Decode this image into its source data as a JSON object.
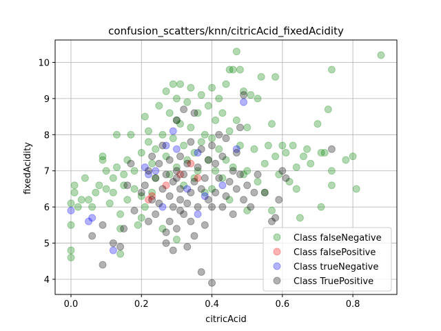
{
  "chart_data": {
    "type": "scatter",
    "title": "confusion_scatters/knn/citricAcid_fixedAcidity",
    "xlabel": "citricAcid",
    "ylabel": "fixedAcidity",
    "xlim": [
      -0.045,
      0.925
    ],
    "ylim": [
      3.58,
      10.62
    ],
    "xticks": [
      0.0,
      0.2,
      0.4,
      0.6,
      0.8
    ],
    "yticks": [
      4,
      5,
      6,
      7,
      8,
      9,
      10
    ],
    "xtick_labels": [
      "0.0",
      "0.2",
      "0.4",
      "0.6",
      "0.8"
    ],
    "ytick_labels": [
      "4",
      "5",
      "6",
      "7",
      "8",
      "9",
      "10"
    ],
    "grid": true,
    "legend_position": "bottom-right",
    "series": [
      {
        "name": "Class falseNegative",
        "color": "#008000",
        "points": [
          [
            0.0,
            4.6
          ],
          [
            0.0,
            4.8
          ],
          [
            0.0,
            5.5
          ],
          [
            0.0,
            6.1
          ],
          [
            0.01,
            6.4
          ],
          [
            0.01,
            6.6
          ],
          [
            0.02,
            6.0
          ],
          [
            0.03,
            6.2
          ],
          [
            0.04,
            6.8
          ],
          [
            0.05,
            6.2
          ],
          [
            0.06,
            6.0
          ],
          [
            0.07,
            6.4
          ],
          [
            0.08,
            6.6
          ],
          [
            0.09,
            7.3
          ],
          [
            0.09,
            7.4
          ],
          [
            0.1,
            6.5
          ],
          [
            0.1,
            7.0
          ],
          [
            0.11,
            6.1
          ],
          [
            0.12,
            6.4
          ],
          [
            0.12,
            6.8
          ],
          [
            0.13,
            7.1
          ],
          [
            0.13,
            8.0
          ],
          [
            0.14,
            4.7
          ],
          [
            0.14,
            5.4
          ],
          [
            0.14,
            5.8
          ],
          [
            0.15,
            6.6
          ],
          [
            0.15,
            6.9
          ],
          [
            0.16,
            6.2
          ],
          [
            0.16,
            7.3
          ],
          [
            0.17,
            8.0
          ],
          [
            0.18,
            6.5
          ],
          [
            0.18,
            7.0
          ],
          [
            0.19,
            5.5
          ],
          [
            0.2,
            5.7
          ],
          [
            0.2,
            6.3
          ],
          [
            0.2,
            7.5
          ],
          [
            0.21,
            8.5
          ],
          [
            0.21,
            6.0
          ],
          [
            0.22,
            7.8
          ],
          [
            0.22,
            8.1
          ],
          [
            0.23,
            6.4
          ],
          [
            0.23,
            7.2
          ],
          [
            0.24,
            6.8
          ],
          [
            0.24,
            7.6
          ],
          [
            0.25,
            8.8
          ],
          [
            0.26,
            8.0
          ],
          [
            0.27,
            9.2
          ],
          [
            0.27,
            7.4
          ],
          [
            0.28,
            8.6
          ],
          [
            0.28,
            6.9
          ],
          [
            0.29,
            9.4
          ],
          [
            0.29,
            7.9
          ],
          [
            0.3,
            9.0
          ],
          [
            0.3,
            8.4
          ],
          [
            0.3,
            7.1
          ],
          [
            0.31,
            9.4
          ],
          [
            0.31,
            8.3
          ],
          [
            0.32,
            6.6
          ],
          [
            0.32,
            7.7
          ],
          [
            0.33,
            8.9
          ],
          [
            0.33,
            7.3
          ],
          [
            0.34,
            9.3
          ],
          [
            0.34,
            8.2
          ],
          [
            0.35,
            6.8
          ],
          [
            0.35,
            7.5
          ],
          [
            0.36,
            8.6
          ],
          [
            0.36,
            7.0
          ],
          [
            0.37,
            9.1
          ],
          [
            0.37,
            7.8
          ],
          [
            0.38,
            6.4
          ],
          [
            0.38,
            8.0
          ],
          [
            0.39,
            8.8
          ],
          [
            0.39,
            7.3
          ],
          [
            0.4,
            9.3
          ],
          [
            0.4,
            7.9
          ],
          [
            0.4,
            6.5
          ],
          [
            0.41,
            8.4
          ],
          [
            0.41,
            7.0
          ],
          [
            0.42,
            9.0
          ],
          [
            0.42,
            7.6
          ],
          [
            0.43,
            8.6
          ],
          [
            0.43,
            6.8
          ],
          [
            0.44,
            9.4
          ],
          [
            0.44,
            7.3
          ],
          [
            0.45,
            9.8
          ],
          [
            0.45,
            8.1
          ],
          [
            0.46,
            7.1
          ],
          [
            0.46,
            9.8
          ],
          [
            0.47,
            10.3
          ],
          [
            0.47,
            8.4
          ],
          [
            0.48,
            9.8
          ],
          [
            0.48,
            7.7
          ],
          [
            0.49,
            9.2
          ],
          [
            0.49,
            6.9
          ],
          [
            0.5,
            8.2
          ],
          [
            0.5,
            7.0
          ],
          [
            0.51,
            9.1
          ],
          [
            0.52,
            7.6
          ],
          [
            0.53,
            6.7
          ],
          [
            0.53,
            9.0
          ],
          [
            0.54,
            9.6
          ],
          [
            0.55,
            7.2
          ],
          [
            0.55,
            6.4
          ],
          [
            0.56,
            7.7
          ],
          [
            0.57,
            8.3
          ],
          [
            0.57,
            5.9
          ],
          [
            0.58,
            9.6
          ],
          [
            0.58,
            7.4
          ],
          [
            0.59,
            6.9
          ],
          [
            0.6,
            7.7
          ],
          [
            0.61,
            7.5
          ],
          [
            0.62,
            6.7
          ],
          [
            0.63,
            7.7
          ],
          [
            0.64,
            6.5
          ],
          [
            0.64,
            7.1
          ],
          [
            0.65,
            5.7
          ],
          [
            0.66,
            7.4
          ],
          [
            0.67,
            7.6
          ],
          [
            0.68,
            7.2
          ],
          [
            0.7,
            8.3
          ],
          [
            0.71,
            6.0
          ],
          [
            0.71,
            7.5
          ],
          [
            0.72,
            7.5
          ],
          [
            0.73,
            8.7
          ],
          [
            0.74,
            9.8
          ],
          [
            0.74,
            6.6
          ],
          [
            0.74,
            7.0
          ],
          [
            0.78,
            7.3
          ],
          [
            0.8,
            7.4
          ],
          [
            0.81,
            6.5
          ],
          [
            0.88,
            10.2
          ],
          [
            0.5,
            5.9
          ],
          [
            0.45,
            6.2
          ],
          [
            0.3,
            5.1
          ],
          [
            0.26,
            5.4
          ]
        ]
      },
      {
        "name": "Class falsePositive",
        "color": "#ff0000",
        "points": [
          [
            0.22,
            6.2
          ],
          [
            0.23,
            6.3
          ],
          [
            0.27,
            6.6
          ],
          [
            0.31,
            6.9
          ],
          [
            0.34,
            7.2
          ],
          [
            0.36,
            6.8
          ]
        ]
      },
      {
        "name": "Class trueNegative",
        "color": "#0000ff",
        "points": [
          [
            0.0,
            5.9
          ],
          [
            0.05,
            5.6
          ],
          [
            0.06,
            5.7
          ],
          [
            0.12,
            4.8
          ],
          [
            0.21,
            7.1
          ],
          [
            0.22,
            6.9
          ],
          [
            0.24,
            7.0
          ],
          [
            0.27,
            7.7
          ],
          [
            0.29,
            8.1
          ],
          [
            0.3,
            7.6
          ],
          [
            0.36,
            7.5
          ],
          [
            0.38,
            6.3
          ],
          [
            0.43,
            6.6
          ],
          [
            0.47,
            7.6
          ],
          [
            0.49,
            8.9
          ],
          [
            0.33,
            6.5
          ],
          [
            0.26,
            6.0
          ],
          [
            0.36,
            5.8
          ]
        ]
      },
      {
        "name": "Class TruePositive",
        "color": "#000000",
        "points": [
          [
            0.06,
            5.2
          ],
          [
            0.09,
            4.4
          ],
          [
            0.09,
            5.5
          ],
          [
            0.12,
            5.0
          ],
          [
            0.14,
            4.9
          ],
          [
            0.15,
            5.4
          ],
          [
            0.16,
            6.6
          ],
          [
            0.17,
            7.2
          ],
          [
            0.18,
            5.9
          ],
          [
            0.2,
            6.4
          ],
          [
            0.21,
            6.6
          ],
          [
            0.22,
            7.0
          ],
          [
            0.22,
            5.6
          ],
          [
            0.23,
            6.2
          ],
          [
            0.23,
            7.4
          ],
          [
            0.24,
            5.8
          ],
          [
            0.24,
            6.8
          ],
          [
            0.25,
            7.2
          ],
          [
            0.25,
            6.1
          ],
          [
            0.26,
            6.5
          ],
          [
            0.26,
            7.7
          ],
          [
            0.27,
            5.0
          ],
          [
            0.27,
            6.9
          ],
          [
            0.28,
            5.6
          ],
          [
            0.28,
            6.3
          ],
          [
            0.28,
            7.3
          ],
          [
            0.29,
            4.8
          ],
          [
            0.29,
            6.0
          ],
          [
            0.29,
            6.7
          ],
          [
            0.3,
            7.0
          ],
          [
            0.3,
            5.4
          ],
          [
            0.3,
            8.4
          ],
          [
            0.31,
            6.2
          ],
          [
            0.31,
            6.5
          ],
          [
            0.31,
            7.4
          ],
          [
            0.32,
            5.8
          ],
          [
            0.32,
            6.9
          ],
          [
            0.32,
            8.7
          ],
          [
            0.33,
            4.9
          ],
          [
            0.33,
            6.1
          ],
          [
            0.33,
            7.2
          ],
          [
            0.34,
            5.6
          ],
          [
            0.34,
            6.4
          ],
          [
            0.34,
            7.8
          ],
          [
            0.35,
            5.2
          ],
          [
            0.35,
            6.7
          ],
          [
            0.36,
            6.0
          ],
          [
            0.36,
            7.1
          ],
          [
            0.37,
            4.2
          ],
          [
            0.37,
            6.5
          ],
          [
            0.37,
            7.6
          ],
          [
            0.38,
            5.5
          ],
          [
            0.38,
            6.8
          ],
          [
            0.39,
            6.2
          ],
          [
            0.39,
            7.3
          ],
          [
            0.4,
            6.0
          ],
          [
            0.4,
            7.7
          ],
          [
            0.41,
            6.4
          ],
          [
            0.41,
            7.2
          ],
          [
            0.42,
            6.8
          ],
          [
            0.42,
            8.0
          ],
          [
            0.43,
            6.0
          ],
          [
            0.43,
            7.4
          ],
          [
            0.44,
            6.3
          ],
          [
            0.44,
            7.9
          ],
          [
            0.45,
            6.7
          ],
          [
            0.46,
            7.0
          ],
          [
            0.46,
            5.8
          ],
          [
            0.47,
            6.5
          ],
          [
            0.47,
            7.5
          ],
          [
            0.48,
            6.9
          ],
          [
            0.48,
            8.2
          ],
          [
            0.49,
            6.2
          ],
          [
            0.49,
            9.1
          ],
          [
            0.5,
            6.6
          ],
          [
            0.51,
            6.0
          ],
          [
            0.52,
            6.4
          ],
          [
            0.53,
            6.9
          ],
          [
            0.55,
            6.4
          ],
          [
            0.57,
            5.6
          ],
          [
            0.58,
            5.7
          ],
          [
            0.59,
            6.2
          ],
          [
            0.6,
            7.0
          ],
          [
            0.61,
            6.8
          ],
          [
            0.74,
            7.6
          ],
          [
            0.4,
            3.9
          ],
          [
            0.27,
            5.3
          ],
          [
            0.31,
            5.9
          ],
          [
            0.35,
            8.6
          ],
          [
            0.3,
            6.8
          ]
        ]
      }
    ]
  }
}
